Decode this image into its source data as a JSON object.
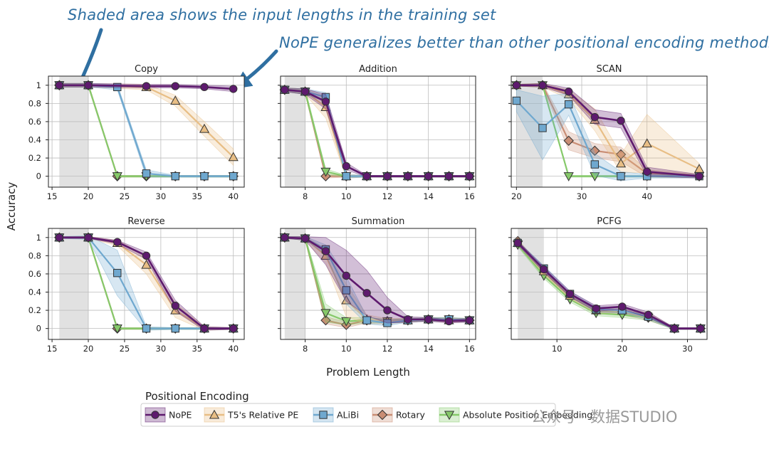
{
  "annotations": [
    "Shaded area shows the input lengths in the training set",
    "NoPE generalizes better than other positional encoding methods"
  ],
  "watermark": "公众号 · 数据STUDIO",
  "shared_xlabel": "Problem Length",
  "shared_ylabel": "Accuracy",
  "legend": {
    "title": "Positional Encoding",
    "entries": [
      {
        "name": "NoPE",
        "color": "#5e1a6e",
        "marker": "circle"
      },
      {
        "name": "T5's Relative PE",
        "color": "#e8be85",
        "marker": "triangle-up"
      },
      {
        "name": "ALiBi",
        "color": "#6fa8cf",
        "marker": "square"
      },
      {
        "name": "Rotary",
        "color": "#c98d74",
        "marker": "diamond"
      },
      {
        "name": "Absolute Position Embedding",
        "color": "#86c96a",
        "marker": "triangle-down"
      }
    ]
  },
  "chart_data": [
    {
      "type": "line",
      "title": "Copy",
      "xlim": [
        14.5,
        41.5
      ],
      "ylim": [
        -0.12,
        1.1
      ],
      "xticks": [
        15,
        20,
        25,
        30,
        35,
        40
      ],
      "yticks": [
        0,
        0.2,
        0.4,
        0.6,
        0.8,
        1
      ],
      "training_range": [
        16,
        20
      ],
      "series": [
        {
          "name": "NoPE",
          "x": [
            16,
            20,
            28,
            32,
            36,
            40
          ],
          "y": [
            1,
            1,
            0.99,
            0.99,
            0.98,
            0.96
          ],
          "band": [
            0.02,
            0.02,
            0.02,
            0.02,
            0.02,
            0.03
          ]
        },
        {
          "name": "T5's Relative PE",
          "x": [
            16,
            20,
            28,
            32,
            36,
            40
          ],
          "y": [
            1,
            1,
            0.98,
            0.83,
            0.52,
            0.21
          ],
          "band": [
            0.02,
            0.02,
            0.03,
            0.06,
            0.08,
            0.09
          ]
        },
        {
          "name": "ALiBi",
          "x": [
            16,
            20,
            24,
            28,
            32,
            36,
            40
          ],
          "y": [
            1,
            1,
            0.98,
            0.03,
            0,
            0,
            0
          ],
          "band": [
            0.02,
            0.02,
            0.03,
            0.04,
            0.01,
            0.01,
            0.01
          ]
        },
        {
          "name": "Rotary",
          "x": [
            16,
            20,
            24,
            28,
            32,
            36,
            40
          ],
          "y": [
            1,
            1,
            0,
            0,
            0,
            0,
            0
          ],
          "band": [
            0.02,
            0.02,
            0.01,
            0.01,
            0.01,
            0.01,
            0.01
          ]
        },
        {
          "name": "Absolute Position Embedding",
          "x": [
            16,
            20,
            24,
            28,
            32,
            36,
            40
          ],
          "y": [
            1,
            1,
            0,
            0,
            0,
            0,
            0
          ],
          "band": [
            0.02,
            0.02,
            0.01,
            0.01,
            0.01,
            0.01,
            0.01
          ]
        }
      ]
    },
    {
      "type": "line",
      "title": "Addition",
      "xlim": [
        6.8,
        16.3
      ],
      "ylim": [
        -0.12,
        1.1
      ],
      "xticks": [
        8,
        10,
        12,
        14,
        16
      ],
      "yticks": [
        0,
        0.2,
        0.4,
        0.6,
        0.8,
        1
      ],
      "training_range": [
        7,
        8
      ],
      "series": [
        {
          "name": "NoPE",
          "x": [
            7,
            8,
            9,
            10,
            11,
            12,
            13,
            14,
            15,
            16
          ],
          "y": [
            0.95,
            0.93,
            0.82,
            0.11,
            0,
            0,
            0,
            0,
            0,
            0
          ],
          "band": [
            0.02,
            0.03,
            0.08,
            0.04,
            0.01,
            0.01,
            0.01,
            0.01,
            0.01,
            0.01
          ]
        },
        {
          "name": "T5's Relative PE",
          "x": [
            7,
            8,
            9,
            10,
            11,
            12,
            13,
            14,
            15,
            16
          ],
          "y": [
            0.95,
            0.93,
            0.76,
            0,
            0,
            0,
            0,
            0,
            0,
            0
          ],
          "band": [
            0.02,
            0.03,
            0.12,
            0.02,
            0.01,
            0.01,
            0.01,
            0.01,
            0.01,
            0.01
          ]
        },
        {
          "name": "ALiBi",
          "x": [
            7,
            8,
            9,
            10,
            11,
            12,
            13,
            14,
            15,
            16
          ],
          "y": [
            0.95,
            0.93,
            0.87,
            0,
            0,
            0,
            0,
            0,
            0,
            0
          ],
          "band": [
            0.02,
            0.03,
            0.05,
            0.02,
            0.01,
            0.01,
            0.01,
            0.01,
            0.01,
            0.01
          ]
        },
        {
          "name": "Rotary",
          "x": [
            7,
            8,
            9,
            10,
            11,
            12,
            13,
            14,
            15,
            16
          ],
          "y": [
            0.95,
            0.93,
            0,
            0,
            0,
            0,
            0,
            0,
            0,
            0
          ],
          "band": [
            0.02,
            0.03,
            0.02,
            0.01,
            0.01,
            0.01,
            0.01,
            0.01,
            0.01,
            0.01
          ]
        },
        {
          "name": "Absolute Position Embedding",
          "x": [
            7,
            8,
            9,
            10,
            11,
            12,
            13,
            14,
            15,
            16
          ],
          "y": [
            0.95,
            0.93,
            0.05,
            0,
            0,
            0,
            0,
            0,
            0,
            0
          ],
          "band": [
            0.02,
            0.03,
            0.03,
            0.01,
            0.01,
            0.01,
            0.01,
            0.01,
            0.01,
            0.01
          ]
        }
      ]
    },
    {
      "type": "line",
      "title": "SCAN",
      "xlim": [
        19.2,
        49.2
      ],
      "ylim": [
        -0.12,
        1.1
      ],
      "xticks": [
        20,
        30,
        40
      ],
      "yticks": [
        0,
        0.2,
        0.4,
        0.6,
        0.8,
        1
      ],
      "training_range": [
        20,
        24
      ],
      "series": [
        {
          "name": "NoPE",
          "x": [
            20,
            24,
            28,
            32,
            36,
            40,
            48
          ],
          "y": [
            1,
            1,
            0.93,
            0.65,
            0.61,
            0.05,
            0
          ],
          "band": [
            0.01,
            0.02,
            0.04,
            0.08,
            0.08,
            0.05,
            0.02
          ]
        },
        {
          "name": "T5's Relative PE",
          "x": [
            20,
            24,
            28,
            32,
            36,
            40,
            48
          ],
          "y": [
            1,
            1,
            0.9,
            0.62,
            0.14,
            0.36,
            0.08
          ],
          "band": [
            0.01,
            0.02,
            0.05,
            0.12,
            0.1,
            0.32,
            0.06
          ]
        },
        {
          "name": "ALiBi",
          "x": [
            20,
            24,
            28,
            32,
            36,
            40,
            48
          ],
          "y": [
            0.83,
            0.53,
            0.79,
            0.13,
            0,
            0,
            0
          ],
          "band": [
            0.12,
            0.35,
            0.12,
            0.12,
            0.05,
            0.02,
            0.02
          ]
        },
        {
          "name": "Rotary",
          "x": [
            20,
            24,
            28,
            32,
            36,
            40,
            48
          ],
          "y": [
            1,
            1,
            0.39,
            0.28,
            0.24,
            0.03,
            0
          ],
          "band": [
            0.01,
            0.02,
            0.1,
            0.08,
            0.08,
            0.04,
            0.02
          ]
        },
        {
          "name": "Absolute Position Embedding",
          "x": [
            20,
            24,
            28,
            32,
            36,
            40,
            48
          ],
          "y": [
            1,
            1,
            0,
            0,
            0,
            0,
            0
          ],
          "band": [
            0.01,
            0.02,
            0.01,
            0.01,
            0.01,
            0.01,
            0.01
          ]
        }
      ]
    },
    {
      "type": "line",
      "title": "Reverse",
      "xlim": [
        14.5,
        41.5
      ],
      "ylim": [
        -0.12,
        1.1
      ],
      "xticks": [
        15,
        20,
        25,
        30,
        35,
        40
      ],
      "yticks": [
        0,
        0.2,
        0.4,
        0.6,
        0.8,
        1
      ],
      "training_range": [
        16,
        20
      ],
      "series": [
        {
          "name": "NoPE",
          "x": [
            16,
            20,
            24,
            28,
            32,
            36,
            40
          ],
          "y": [
            1,
            1,
            0.95,
            0.8,
            0.25,
            0,
            0
          ],
          "band": [
            0.01,
            0.01,
            0.02,
            0.04,
            0.06,
            0.02,
            0.01
          ]
        },
        {
          "name": "T5's Relative PE",
          "x": [
            16,
            20,
            24,
            28,
            32,
            36,
            40
          ],
          "y": [
            1,
            1,
            0.94,
            0.7,
            0.2,
            0,
            0
          ],
          "band": [
            0.01,
            0.01,
            0.03,
            0.1,
            0.08,
            0.02,
            0.01
          ]
        },
        {
          "name": "ALiBi",
          "x": [
            16,
            20,
            24,
            28,
            32,
            36,
            40
          ],
          "y": [
            1,
            1,
            0.61,
            0,
            0,
            0,
            0
          ],
          "band": [
            0.01,
            0.02,
            0.25,
            0.02,
            0.01,
            0.01,
            0.01
          ]
        },
        {
          "name": "Rotary",
          "x": [
            16,
            20,
            24,
            28,
            32,
            36,
            40
          ],
          "y": [
            1,
            1,
            0,
            0,
            0,
            0,
            0
          ],
          "band": [
            0.01,
            0.01,
            0.01,
            0.01,
            0.01,
            0.01,
            0.01
          ]
        },
        {
          "name": "Absolute Position Embedding",
          "x": [
            16,
            20,
            24,
            28,
            32,
            36,
            40
          ],
          "y": [
            1,
            1,
            0,
            0,
            0,
            0,
            0
          ],
          "band": [
            0.01,
            0.01,
            0.01,
            0.01,
            0.01,
            0.01,
            0.01
          ]
        }
      ]
    },
    {
      "type": "line",
      "title": "Summation",
      "xlim": [
        6.8,
        16.3
      ],
      "ylim": [
        -0.12,
        1.1
      ],
      "xticks": [
        8,
        10,
        12,
        14,
        16
      ],
      "yticks": [
        0,
        0.2,
        0.4,
        0.6,
        0.8,
        1
      ],
      "training_range": [
        7,
        8
      ],
      "series": [
        {
          "name": "NoPE",
          "x": [
            7,
            8,
            9,
            10,
            11,
            12,
            13,
            14,
            15,
            16
          ],
          "y": [
            1,
            0.99,
            0.85,
            0.58,
            0.39,
            0.2,
            0.1,
            0.1,
            0.08,
            0.09
          ],
          "band": [
            0.01,
            0.02,
            0.15,
            0.28,
            0.25,
            0.14,
            0.03,
            0.02,
            0.02,
            0.02
          ]
        },
        {
          "name": "T5's Relative PE",
          "x": [
            7,
            8,
            9,
            10,
            11,
            12,
            13,
            14,
            15,
            16
          ],
          "y": [
            1,
            0.99,
            0.8,
            0.31,
            0.1,
            0.08,
            0.09,
            0.1,
            0.09,
            0.09
          ],
          "band": [
            0.01,
            0.02,
            0.08,
            0.18,
            0.05,
            0.03,
            0.02,
            0.02,
            0.02,
            0.02
          ]
        },
        {
          "name": "ALiBi",
          "x": [
            7,
            8,
            9,
            10,
            11,
            12,
            13,
            14,
            15,
            16
          ],
          "y": [
            1,
            0.99,
            0.87,
            0.42,
            0.09,
            0.06,
            0.09,
            0.1,
            0.1,
            0.09
          ],
          "band": [
            0.01,
            0.02,
            0.05,
            0.15,
            0.04,
            0.03,
            0.02,
            0.02,
            0.02,
            0.02
          ]
        },
        {
          "name": "Rotary",
          "x": [
            7,
            8,
            9,
            10,
            11,
            12,
            13,
            14,
            15,
            16
          ],
          "y": [
            1,
            0.99,
            0.09,
            0.04,
            0.09,
            0.08,
            0.09,
            0.1,
            0.1,
            0.09
          ],
          "band": [
            0.01,
            0.02,
            0.04,
            0.03,
            0.03,
            0.02,
            0.02,
            0.02,
            0.02,
            0.02
          ]
        },
        {
          "name": "Absolute Position Embedding",
          "x": [
            7,
            8,
            9,
            10,
            11,
            12,
            13,
            14,
            15,
            16
          ],
          "y": [
            1,
            0.99,
            0.17,
            0.08,
            0.09,
            0.08,
            0.09,
            0.1,
            0.1,
            0.09
          ],
          "band": [
            0.01,
            0.02,
            0.1,
            0.04,
            0.03,
            0.02,
            0.02,
            0.02,
            0.02,
            0.02
          ]
        }
      ]
    },
    {
      "type": "line",
      "title": "PCFG",
      "xlim": [
        3,
        33
      ],
      "ylim": [
        -0.12,
        1.1
      ],
      "xticks": [
        10,
        20,
        30
      ],
      "yticks": [
        0,
        0.2,
        0.4,
        0.6,
        0.8,
        1
      ],
      "training_range": [
        4,
        8
      ],
      "series": [
        {
          "name": "NoPE",
          "x": [
            4,
            8,
            12,
            16,
            20,
            24,
            28,
            32
          ],
          "y": [
            0.94,
            0.65,
            0.38,
            0.22,
            0.24,
            0.15,
            0,
            0
          ],
          "band": [
            0.02,
            0.03,
            0.03,
            0.03,
            0.03,
            0.03,
            0.01,
            0.01
          ]
        },
        {
          "name": "T5's Relative PE",
          "x": [
            4,
            8,
            12,
            16,
            20,
            24,
            28,
            32
          ],
          "y": [
            0.94,
            0.63,
            0.36,
            0.2,
            0.2,
            0.14,
            0,
            0
          ],
          "band": [
            0.02,
            0.03,
            0.03,
            0.03,
            0.03,
            0.03,
            0.01,
            0.01
          ]
        },
        {
          "name": "ALiBi",
          "x": [
            4,
            8,
            12,
            16,
            20,
            24,
            28,
            32
          ],
          "y": [
            0.94,
            0.66,
            0.38,
            0.21,
            0.2,
            0.13,
            0,
            0
          ],
          "band": [
            0.02,
            0.03,
            0.03,
            0.03,
            0.03,
            0.03,
            0.01,
            0.01
          ]
        },
        {
          "name": "Rotary",
          "x": [
            4,
            8,
            12,
            16,
            20,
            24,
            28,
            32
          ],
          "y": [
            0.96,
            0.62,
            0.35,
            0.19,
            0.18,
            0.12,
            0,
            0
          ],
          "band": [
            0.02,
            0.03,
            0.03,
            0.03,
            0.03,
            0.03,
            0.01,
            0.01
          ]
        },
        {
          "name": "Absolute Position Embedding",
          "x": [
            4,
            8,
            12,
            16,
            20,
            24,
            28,
            32
          ],
          "y": [
            0.92,
            0.58,
            0.32,
            0.17,
            0.15,
            0.12,
            0,
            0
          ],
          "band": [
            0.02,
            0.03,
            0.03,
            0.03,
            0.03,
            0.03,
            0.01,
            0.01
          ]
        }
      ]
    }
  ]
}
